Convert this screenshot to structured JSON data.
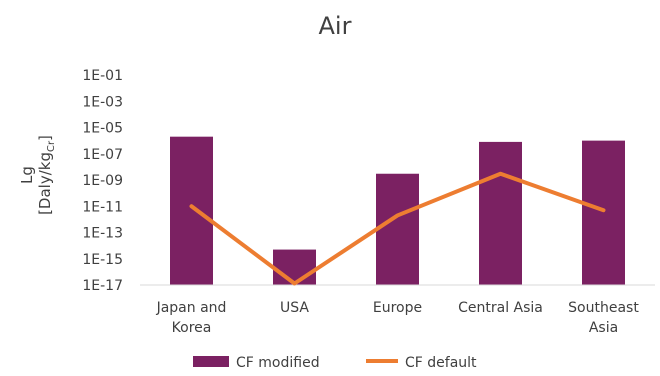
{
  "chart_data": {
    "type": "bar",
    "title": "Air",
    "ylabel_line1": "Lg",
    "ylabel_line2_pre": "[Daly/kg",
    "ylabel_line2_sub": "Cr",
    "ylabel_line2_post": "]",
    "y_scale": "log",
    "ylim": [
      1e-17,
      0.1
    ],
    "yticks": [
      "1E-01",
      "1E-03",
      "1E-05",
      "1E-07",
      "1E-09",
      "1E-11",
      "1E-13",
      "1E-15",
      "1E-17"
    ],
    "categories": [
      [
        "Japan and",
        "Korea"
      ],
      [
        "USA"
      ],
      [
        "Europe"
      ],
      [
        "Central Asia"
      ],
      [
        "Southeast",
        "Asia"
      ]
    ],
    "series": [
      {
        "name": "CF modified",
        "kind": "bar",
        "color": "#7B2162",
        "values": [
          2e-06,
          5e-15,
          3e-09,
          8e-07,
          1e-06
        ]
      },
      {
        "name": "CF default",
        "kind": "line",
        "color": "#ED7D31",
        "values": [
          1e-11,
          1.3e-17,
          2e-12,
          3e-09,
          5e-12
        ]
      }
    ],
    "grid": false,
    "legend": "bottom"
  }
}
